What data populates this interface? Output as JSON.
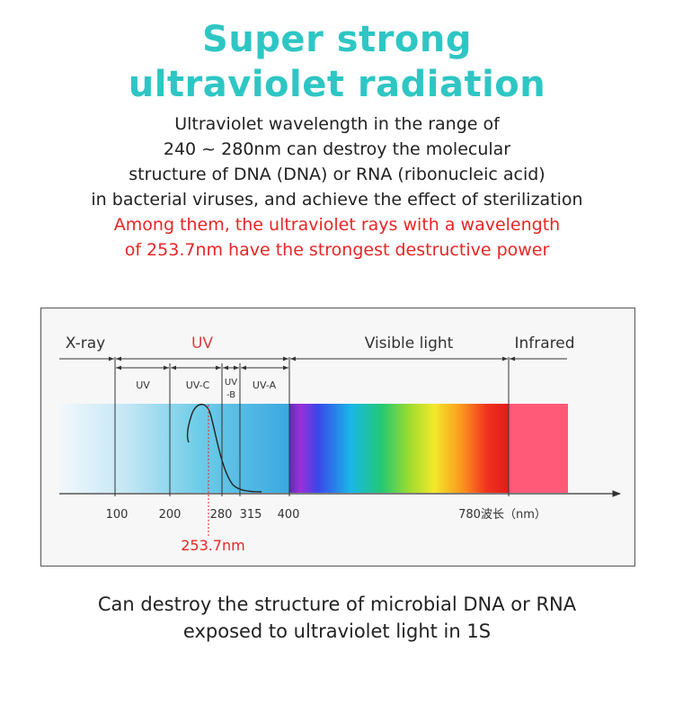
{
  "title": {
    "line1": "Super strong",
    "line2": "ultraviolet radiation"
  },
  "description": {
    "lines": [
      "Ultraviolet wavelength in the range of",
      "240 ~ 280nm can destroy the molecular",
      "structure of DNA (DNA) or RNA (ribonucleic acid)",
      "in bacterial viruses, and achieve the effect of sterilization"
    ],
    "highlight_lines": [
      "Among them, the ultraviolet rays with a wavelength",
      "of 253.7nm have the strongest destructive power"
    ]
  },
  "spectrum": {
    "regions": {
      "xray": "X-ray",
      "uv": "UV",
      "visible": "Visible light",
      "infrared": "Infrared"
    },
    "uv_bands": {
      "uv": "UV",
      "uvc": "UV-C",
      "uvb_line1": "UV",
      "uvb_line2": "-B",
      "uva": "UV-A"
    },
    "ticks": [
      "100",
      "200",
      "280",
      "315",
      "400"
    ],
    "axis_end_label": "780波长（nm）",
    "peak_label": "253.7nm",
    "colors": {
      "uv_label": "#e23c3c",
      "peak": "#e82525",
      "infrared": "#ff5a78",
      "frame": "#555555"
    }
  },
  "footer": {
    "line1": "Can destroy the structure of microbial DNA or RNA",
    "line2": "exposed to ultraviolet light in 1S"
  }
}
